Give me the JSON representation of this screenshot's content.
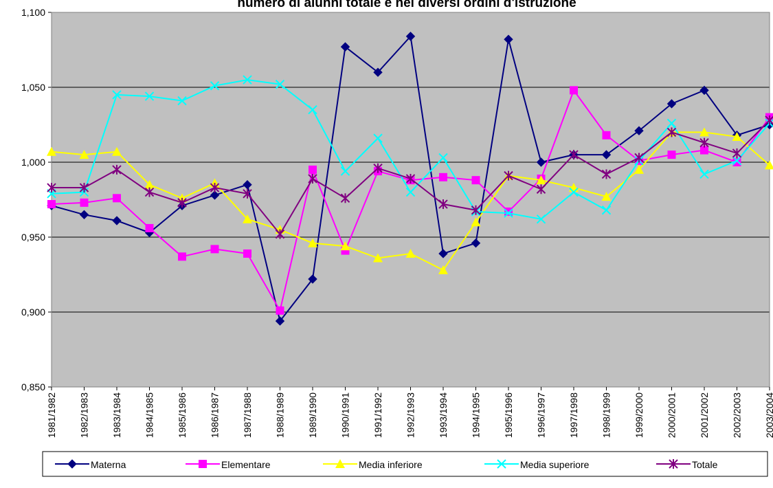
{
  "chart_data": {
    "type": "line",
    "title": "numero di alunni totale e nei diversi ordini d'istruzione",
    "categories": [
      "1981/1982",
      "1982/1983",
      "1983/1984",
      "1984/1985",
      "1985/1986",
      "1986/1987",
      "1987/1988",
      "1988/1989",
      "1989/1990",
      "1990/1991",
      "1991/1992",
      "1992/1993",
      "1993/1994",
      "1994/1995",
      "1995/1996",
      "1996/1997",
      "1997/1998",
      "1998/1999",
      "1999/2000",
      "2000/2001",
      "2001/2002",
      "2002/2003",
      "2003/2004"
    ],
    "ylim": [
      0.85,
      1.1
    ],
    "yticks": [
      {
        "value": 0.85,
        "label": "0,850"
      },
      {
        "value": 0.9,
        "label": "0,900"
      },
      {
        "value": 0.95,
        "label": "0,950"
      },
      {
        "value": 1.0,
        "label": "1,000"
      },
      {
        "value": 1.05,
        "label": "1,050"
      },
      {
        "value": 1.1,
        "label": "1,100"
      }
    ],
    "grid": true,
    "legend": "bottom",
    "series": [
      {
        "name": "Materna",
        "color": "#000080",
        "marker": "diamond",
        "values": [
          0.971,
          0.965,
          0.961,
          0.953,
          0.971,
          0.978,
          0.985,
          0.894,
          0.922,
          1.077,
          1.06,
          1.084,
          0.939,
          0.946,
          1.082,
          1.0,
          1.005,
          1.005,
          1.021,
          1.039,
          1.048,
          1.018,
          1.025
        ]
      },
      {
        "name": "Elementare",
        "color": "#ff00ff",
        "marker": "square",
        "values": [
          0.972,
          0.973,
          0.976,
          0.956,
          0.937,
          0.942,
          0.939,
          0.901,
          0.995,
          0.941,
          0.994,
          0.988,
          0.99,
          0.988,
          0.967,
          0.989,
          1.048,
          1.018,
          1.001,
          1.005,
          1.008,
          1.0,
          1.03
        ]
      },
      {
        "name": "Media inferiore",
        "color": "#ffff00",
        "marker": "triangle",
        "values": [
          1.007,
          1.005,
          1.007,
          0.985,
          0.976,
          0.986,
          0.962,
          0.955,
          0.946,
          0.944,
          0.936,
          0.939,
          0.928,
          0.96,
          0.991,
          0.988,
          0.983,
          0.977,
          0.995,
          1.02,
          1.02,
          1.017,
          0.998
        ]
      },
      {
        "name": "Media superiore",
        "color": "#00ffff",
        "marker": "x",
        "values": [
          0.979,
          0.98,
          1.045,
          1.044,
          1.041,
          1.051,
          1.055,
          1.052,
          1.035,
          0.994,
          1.016,
          0.98,
          1.003,
          0.967,
          0.966,
          0.962,
          0.98,
          0.968,
          1.001,
          1.026,
          0.992,
          1.001,
          1.026
        ]
      },
      {
        "name": "Totale",
        "color": "#800080",
        "marker": "asterisk",
        "values": [
          0.983,
          0.983,
          0.995,
          0.98,
          0.973,
          0.983,
          0.979,
          0.952,
          0.989,
          0.976,
          0.996,
          0.989,
          0.972,
          0.968,
          0.991,
          0.982,
          1.005,
          0.992,
          1.003,
          1.02,
          1.013,
          1.006,
          1.028
        ]
      }
    ]
  }
}
